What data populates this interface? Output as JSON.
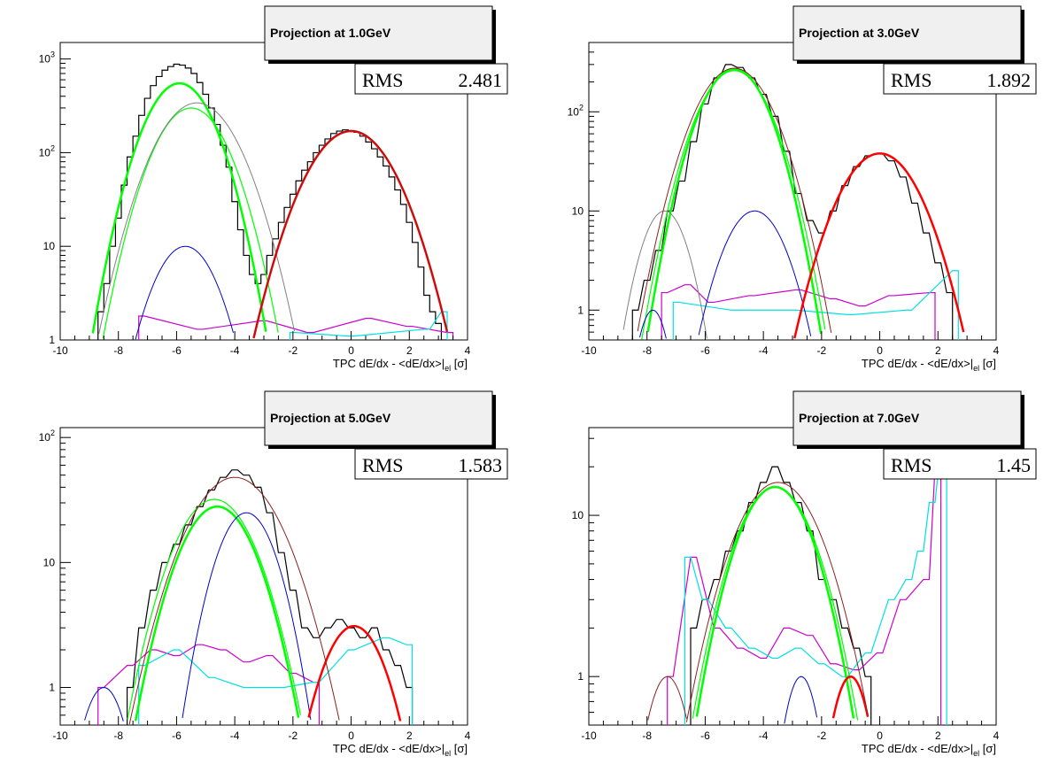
{
  "chart_data": [
    {
      "type": "line",
      "title": "Projection at 1.0GeV",
      "stats": {
        "label": "RMS",
        "value": "2.481"
      },
      "xlabel": "TPC dE/dx - <dE/dx>|el [σ]",
      "xlabel_parts": {
        "main": "TPC dE/dx - <dE/dx>",
        "bar": "|",
        "sub": "el",
        "tail": " [σ]"
      },
      "xlim": [
        -10,
        4
      ],
      "ylim": [
        1,
        1500
      ],
      "yscale": "log",
      "x_ticks": [
        "-10",
        "-8",
        "-6",
        "-4",
        "-2",
        "0",
        "2",
        "4"
      ],
      "y_ticks": [
        {
          "value": 1,
          "label": "1"
        },
        {
          "value": 10,
          "label": "10"
        },
        {
          "value": 100,
          "label": "10",
          "sup": "2"
        },
        {
          "value": 1000,
          "label": "10",
          "sup": "3"
        }
      ],
      "histograms": [
        {
          "color": "#000000",
          "x": [
            -8.6,
            -8.4,
            -8.2,
            -8.0,
            -7.8,
            -7.6,
            -7.4,
            -7.2,
            -7.0,
            -6.8,
            -6.6,
            -6.4,
            -6.2,
            -6.0,
            -5.8,
            -5.6,
            -5.4,
            -5.2,
            -5.0,
            -4.8,
            -4.6,
            -4.4,
            -4.2,
            -4.0,
            -3.8,
            -3.6,
            -3.4,
            -3.2,
            -3.0,
            -2.8,
            -2.6,
            -2.4,
            -2.2,
            -2.0,
            -1.8,
            -1.6,
            -1.4,
            -1.2,
            -1.0,
            -0.8,
            -0.6,
            -0.4,
            -0.2,
            0.0,
            0.2,
            0.4,
            0.6,
            0.8,
            1.0,
            1.2,
            1.4,
            1.6,
            1.8,
            2.0,
            2.2,
            2.4,
            2.6,
            2.8,
            3.0,
            3.2
          ],
          "values": [
            2,
            4,
            10,
            20,
            45,
            90,
            150,
            250,
            380,
            520,
            650,
            760,
            830,
            880,
            860,
            800,
            700,
            560,
            420,
            300,
            200,
            120,
            70,
            30,
            15,
            8,
            5,
            4,
            5,
            8,
            12,
            18,
            26,
            36,
            50,
            65,
            80,
            100,
            120,
            140,
            160,
            170,
            175,
            172,
            165,
            150,
            130,
            110,
            90,
            72,
            55,
            40,
            28,
            18,
            11,
            6,
            3,
            2,
            1.5,
            1
          ]
        },
        {
          "color": "#cc00cc",
          "x": [
            -7.2,
            -5.2,
            -3.0,
            -1.4,
            0.6,
            2.0,
            3.4
          ],
          "values": [
            1.8,
            1.3,
            1.6,
            1.2,
            1.7,
            1.4,
            1.2
          ]
        },
        {
          "color": "#00e0e0",
          "x": [
            -2.0,
            0.0,
            2.6,
            3.2
          ],
          "values": [
            1.2,
            1.1,
            1.3,
            2.0
          ]
        }
      ],
      "fits": [
        {
          "color": "#00ff00",
          "width": 2.5,
          "mean": -5.9,
          "sigma": 0.85,
          "amp": 550
        },
        {
          "color": "#00ff00",
          "width": 1.2,
          "mean": -5.5,
          "sigma": 0.9,
          "amp": 300
        },
        {
          "color": "#808080",
          "width": 1.0,
          "mean": -5.3,
          "sigma": 1.0,
          "amp": 340
        },
        {
          "color": "#0000cc",
          "width": 1.0,
          "mean": -5.7,
          "sigma": 0.8,
          "amp": 10
        },
        {
          "color": "#ff0000",
          "width": 2.5,
          "mean": 0.0,
          "sigma": 1.05,
          "amp": 170
        },
        {
          "color": "#8b2020",
          "width": 1.0,
          "mean": 0.0,
          "sigma": 1.05,
          "amp": 172
        }
      ]
    },
    {
      "type": "line",
      "title": "Projection at 3.0GeV",
      "stats": {
        "label": "RMS",
        "value": "1.892"
      },
      "xlabel": "TPC dE/dx - <dE/dx>|el [σ]",
      "xlabel_parts": {
        "main": "TPC dE/dx - <dE/dx>",
        "bar": "|",
        "sub": "el",
        "tail": " [σ]"
      },
      "xlim": [
        -10,
        4
      ],
      "ylim": [
        0.5,
        500
      ],
      "yscale": "log",
      "x_ticks": [
        "-10",
        "-8",
        "-6",
        "-4",
        "-2",
        "0",
        "2",
        "4"
      ],
      "y_ticks": [
        {
          "value": 1,
          "label": "1"
        },
        {
          "value": 10,
          "label": "10"
        },
        {
          "value": 100,
          "label": "10",
          "sup": "2"
        }
      ],
      "histograms": [
        {
          "color": "#000000",
          "x": [
            -8.4,
            -8.0,
            -7.6,
            -7.2,
            -6.8,
            -6.4,
            -6.0,
            -5.6,
            -5.2,
            -4.8,
            -4.4,
            -4.0,
            -3.6,
            -3.2,
            -2.8,
            -2.4,
            -2.0,
            -1.6,
            -1.2,
            -0.8,
            -0.4,
            0.0,
            0.4,
            0.8,
            1.2,
            1.6,
            2.0,
            2.4
          ],
          "values": [
            1,
            2,
            4,
            10,
            20,
            50,
            120,
            220,
            300,
            280,
            220,
            150,
            90,
            40,
            15,
            8,
            6,
            10,
            18,
            28,
            36,
            38,
            32,
            22,
            12,
            6,
            3,
            1.5
          ]
        },
        {
          "color": "#cc00cc",
          "x": [
            -7.4,
            -6.6,
            -5.8,
            -4.4,
            -2.8,
            -1.6,
            -0.6,
            0.4,
            1.8
          ],
          "values": [
            1.5,
            1.8,
            1.2,
            1.4,
            1.6,
            1.3,
            1.1,
            1.4,
            1.5
          ]
        },
        {
          "color": "#00e0e0",
          "x": [
            -7.0,
            -5.0,
            -3.0,
            -1.0,
            1.0,
            2.6
          ],
          "values": [
            1.2,
            1.0,
            1.0,
            0.9,
            1.0,
            2.5
          ]
        }
      ],
      "fits": [
        {
          "color": "#00ff00",
          "width": 2.5,
          "mean": -5.0,
          "sigma": 0.85,
          "amp": 270
        },
        {
          "color": "#00ff00",
          "width": 1.2,
          "mean": -5.0,
          "sigma": 0.9,
          "amp": 260
        },
        {
          "color": "#808080",
          "width": 1.0,
          "mean": -7.4,
          "sigma": 0.6,
          "amp": 10
        },
        {
          "color": "#0000cc",
          "width": 1.0,
          "mean": -4.3,
          "sigma": 0.8,
          "amp": 10
        },
        {
          "color": "#0000cc",
          "width": 1.0,
          "mean": -7.8,
          "sigma": 0.4,
          "amp": 1
        },
        {
          "color": "#ff0000",
          "width": 2.5,
          "mean": 0.0,
          "sigma": 1.0,
          "amp": 38
        },
        {
          "color": "#8b2020",
          "width": 1.0,
          "mean": -5.0,
          "sigma": 0.95,
          "amp": 275
        }
      ]
    },
    {
      "type": "line",
      "title": "Projection at 5.0GeV",
      "stats": {
        "label": "RMS",
        "value": "1.583"
      },
      "xlabel": "TPC dE/dx - <dE/dx>|el [σ]",
      "xlabel_parts": {
        "main": "TPC dE/dx - <dE/dx>",
        "bar": "|",
        "sub": "el",
        "tail": " [σ]"
      },
      "xlim": [
        -10,
        4
      ],
      "ylim": [
        0.5,
        120
      ],
      "yscale": "log",
      "x_ticks": [
        "-10",
        "-8",
        "-6",
        "-4",
        "-2",
        "0",
        "2",
        "4"
      ],
      "y_ticks": [
        {
          "value": 1,
          "label": "1"
        },
        {
          "value": 10,
          "label": "10"
        },
        {
          "value": 100,
          "label": "10",
          "sup": "2"
        }
      ],
      "histograms": [
        {
          "color": "#000000",
          "x": [
            -7.6,
            -7.2,
            -6.8,
            -6.4,
            -6.0,
            -5.6,
            -5.2,
            -4.8,
            -4.4,
            -4.0,
            -3.6,
            -3.2,
            -2.8,
            -2.4,
            -2.0,
            -1.6,
            -1.2,
            -0.8,
            -0.4,
            0.0,
            0.4,
            0.8,
            1.2,
            1.6,
            2.0
          ],
          "values": [
            1,
            3,
            6,
            10,
            14,
            20,
            28,
            38,
            48,
            55,
            50,
            40,
            25,
            12,
            6,
            3,
            2.5,
            3,
            3.5,
            3,
            2.5,
            3,
            2,
            1.5,
            1
          ]
        },
        {
          "color": "#cc00cc",
          "x": [
            -8.6,
            -7.6,
            -6.8,
            -6.0,
            -5.2,
            -4.4,
            -3.6,
            -2.8,
            -2.0,
            -1.2
          ],
          "values": [
            1.0,
            1.5,
            2.0,
            1.8,
            2.2,
            2.0,
            1.6,
            1.8,
            1.3,
            1.1
          ]
        },
        {
          "color": "#00e0e0",
          "x": [
            -7.2,
            -6.0,
            -4.8,
            -3.6,
            -2.4,
            -1.2,
            0.0,
            1.2,
            2.0
          ],
          "values": [
            1.5,
            2.0,
            1.2,
            1.0,
            1.0,
            1.1,
            2.0,
            2.5,
            2.2
          ]
        }
      ],
      "fits": [
        {
          "color": "#00ff00",
          "width": 2.5,
          "mean": -4.6,
          "sigma": 1.0,
          "amp": 28
        },
        {
          "color": "#00ff00",
          "width": 1.2,
          "mean": -4.7,
          "sigma": 1.05,
          "amp": 32
        },
        {
          "color": "#0000cc",
          "width": 1.0,
          "mean": -3.6,
          "sigma": 0.8,
          "amp": 25
        },
        {
          "color": "#0000cc",
          "width": 1.0,
          "mean": -8.5,
          "sigma": 0.6,
          "amp": 1
        },
        {
          "color": "#ff0000",
          "width": 2.5,
          "mean": 0.1,
          "sigma": 0.85,
          "amp": 3.1
        },
        {
          "color": "#8b2020",
          "width": 1.0,
          "mean": -4.0,
          "sigma": 1.2,
          "amp": 48
        }
      ]
    },
    {
      "type": "line",
      "title": "Projection at 7.0GeV",
      "stats": {
        "label": "RMS",
        "value": "1.45"
      },
      "xlabel": "TPC dE/dx - <dE/dx>|el [σ]",
      "xlabel_parts": {
        "main": "TPC dE/dx - <dE/dx>",
        "bar": "|",
        "sub": "el",
        "tail": " [σ]"
      },
      "xlim": [
        -10,
        4
      ],
      "ylim": [
        0.5,
        35
      ],
      "yscale": "log",
      "x_ticks": [
        "-10",
        "-8",
        "-6",
        "-4",
        "-2",
        "0",
        "2",
        "4"
      ],
      "y_ticks": [
        {
          "value": 1,
          "label": "1"
        },
        {
          "value": 10,
          "label": "10"
        }
      ],
      "histograms": [
        {
          "color": "#000000",
          "x": [
            -6.4,
            -6.0,
            -5.6,
            -5.2,
            -4.8,
            -4.4,
            -4.0,
            -3.6,
            -3.2,
            -2.8,
            -2.4,
            -2.0,
            -1.6,
            -1.2,
            -0.8,
            -0.4
          ],
          "values": [
            2,
            3,
            4,
            6,
            8,
            12,
            16,
            20,
            16,
            12,
            8,
            4,
            3,
            2,
            1.5,
            1
          ]
        },
        {
          "color": "#cc00cc",
          "x": [
            -7.2,
            -6.4,
            -5.6,
            -4.8,
            -4.0,
            -3.2,
            -2.4,
            -1.6,
            -0.8,
            0.0,
            0.8,
            1.6,
            2.0
          ],
          "values": [
            1.0,
            5.5,
            2.0,
            1.5,
            1.3,
            2.0,
            1.8,
            1.2,
            1.1,
            1.4,
            3.0,
            4.0,
            20
          ]
        },
        {
          "color": "#00e0e0",
          "x": [
            -6.6,
            -6.0,
            -5.2,
            -4.4,
            -3.6,
            -2.8,
            -2.0,
            -1.2,
            -0.4,
            0.4,
            1.0,
            1.4,
            1.8,
            2.2
          ],
          "values": [
            5.5,
            3.0,
            2.0,
            1.5,
            1.3,
            1.5,
            1.2,
            1.0,
            1.4,
            3.0,
            4.0,
            6.0,
            12,
            27
          ]
        }
      ],
      "fits": [
        {
          "color": "#00ff00",
          "width": 2.5,
          "mean": -3.6,
          "sigma": 1.05,
          "amp": 15
        },
        {
          "color": "#00ff00",
          "width": 1.2,
          "mean": -3.6,
          "sigma": 1.1,
          "amp": 15
        },
        {
          "color": "#0000cc",
          "width": 1.0,
          "mean": -2.7,
          "sigma": 0.5,
          "amp": 1
        },
        {
          "color": "#ff0000",
          "width": 2.5,
          "mean": -1.0,
          "sigma": 0.55,
          "amp": 1
        },
        {
          "color": "#8b2020",
          "width": 1.0,
          "mean": -3.5,
          "sigma": 1.2,
          "amp": 16
        },
        {
          "color": "#8b2020",
          "width": 1.0,
          "mean": -7.3,
          "sigma": 0.6,
          "amp": 1
        }
      ]
    }
  ]
}
